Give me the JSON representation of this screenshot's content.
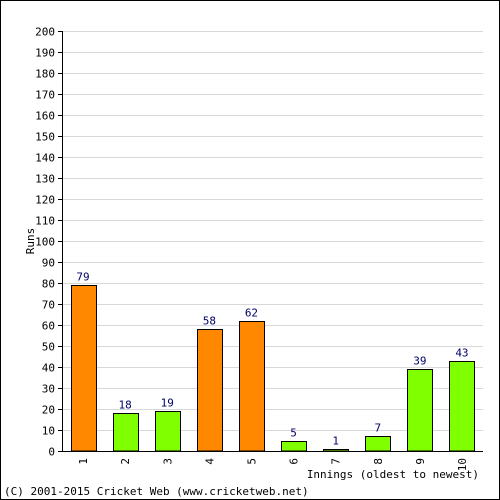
{
  "chart_data": {
    "type": "bar",
    "categories": [
      "1",
      "2",
      "3",
      "4",
      "5",
      "6",
      "7",
      "8",
      "9",
      "10"
    ],
    "values": [
      79,
      18,
      19,
      58,
      62,
      5,
      1,
      7,
      39,
      43
    ],
    "bar_colors": [
      "#ff8800",
      "#80ff00",
      "#80ff00",
      "#ff8800",
      "#ff8800",
      "#80ff00",
      "#80ff00",
      "#80ff00",
      "#80ff00",
      "#80ff00"
    ],
    "xlabel": "Innings (oldest to newest)",
    "ylabel": "Runs",
    "ylim": [
      0,
      200
    ],
    "ytick_step": 10,
    "grid": true,
    "legend": "none"
  },
  "footer": {
    "copyright": "(C) 2001-2015 Cricket Web (www.cricketweb.net)"
  },
  "colors": {
    "hundred_plus_or_fifty": "#ff8800",
    "under_fifty": "#80ff00",
    "grid": "#d8d8d8",
    "data_label": "#000066"
  }
}
